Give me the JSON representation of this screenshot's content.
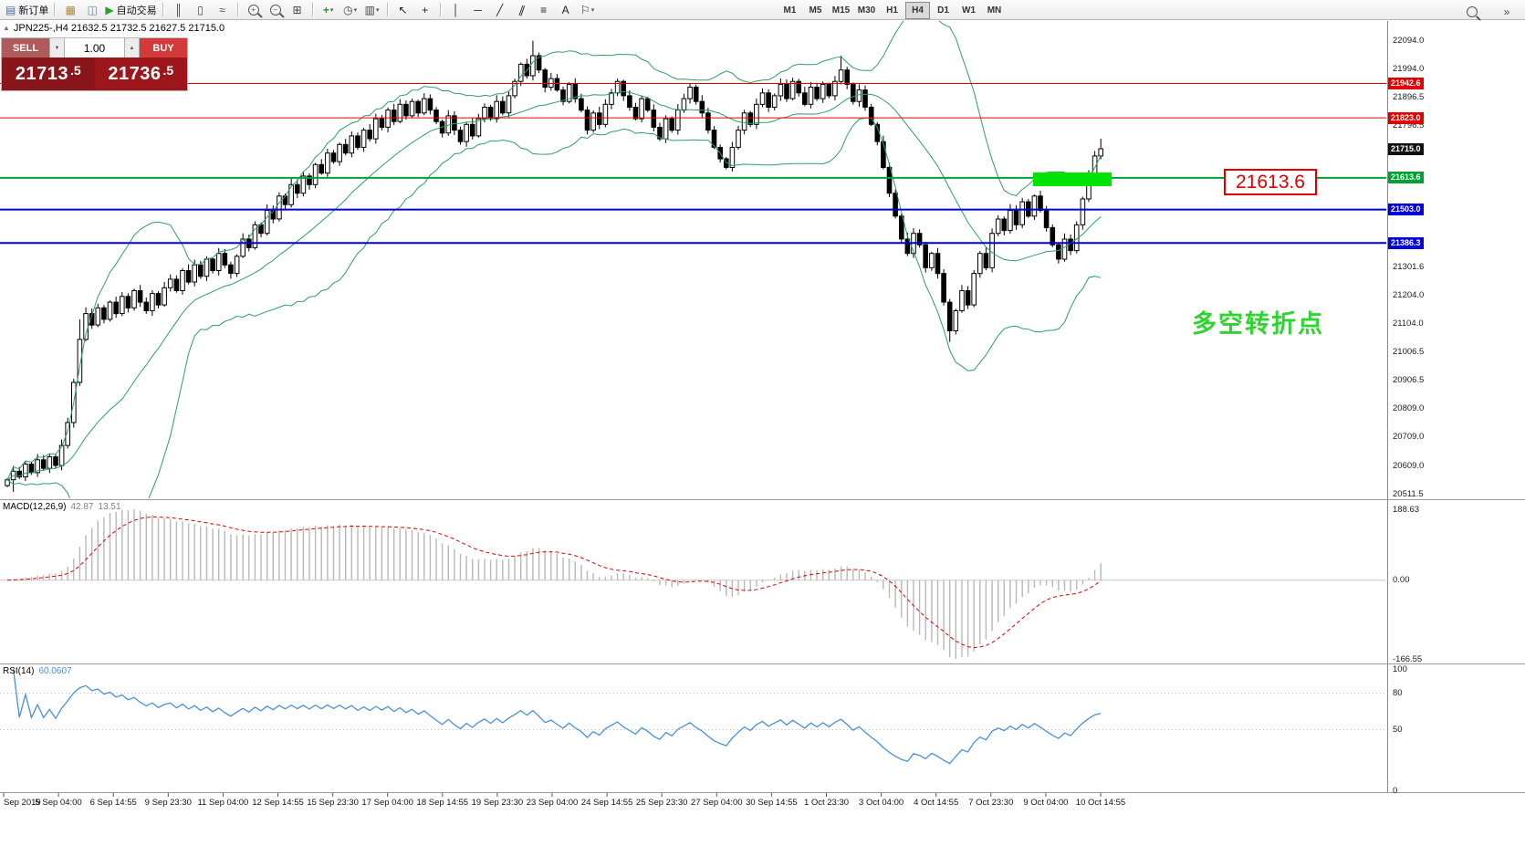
{
  "toolbar": {
    "items": [
      {
        "name": "new-order-button",
        "glyph": "▤",
        "color": "#3e6fb0",
        "label": "新订单"
      },
      {
        "sep": true
      },
      {
        "name": "charts-window-icon",
        "glyph": "▦",
        "color": "#b08a3e"
      },
      {
        "name": "profiles-icon",
        "glyph": "◫",
        "color": "#5e82b8"
      },
      {
        "name": "autotrading-button",
        "glyph": "▶",
        "color": "#28a428",
        "label": "自动交易"
      },
      {
        "sep": true
      },
      {
        "name": "bar-chart-icon",
        "glyph": "║",
        "color": "#444444"
      },
      {
        "name": "candlestick-chart-icon",
        "glyph": "▯",
        "color": "#444444"
      },
      {
        "name": "line-chart-icon",
        "glyph": "≈",
        "color": "#444444"
      },
      {
        "sep": true
      },
      {
        "name": "zoom-in-icon",
        "kind": "mag",
        "sub": "+"
      },
      {
        "name": "zoom-out-icon",
        "kind": "mag",
        "sub": "−"
      },
      {
        "name": "tile-windows-icon",
        "glyph": "⊞",
        "color": "#444444"
      },
      {
        "sep": true
      },
      {
        "name": "indicators-button",
        "glyph": "+",
        "color": "#1f9e1f",
        "bold": true,
        "dropdown": true
      },
      {
        "name": "periods-button",
        "glyph": "◷",
        "color": "#444444",
        "dropdown": true
      },
      {
        "name": "template-button",
        "glyph": "▥",
        "color": "#444444",
        "dropdown": true
      },
      {
        "sep": true
      },
      {
        "name": "cursor-icon",
        "glyph": "↖",
        "color": "#222222"
      },
      {
        "name": "crosshair-icon",
        "glyph": "+",
        "color": "#222222"
      },
      {
        "sep": true
      },
      {
        "name": "vertical-line-icon",
        "glyph": "│",
        "color": "#222222"
      },
      {
        "name": "horizontal-line-icon",
        "glyph": "─",
        "color": "#222222"
      },
      {
        "name": "trendline-icon",
        "glyph": "╱",
        "color": "#222222"
      },
      {
        "name": "channel-icon",
        "glyph": "∥",
        "color": "#222222",
        "tilt": true
      },
      {
        "name": "fibonacci-icon",
        "glyph": "≡",
        "color": "#222222"
      },
      {
        "name": "text-icon",
        "glyph": "A",
        "color": "#222222"
      },
      {
        "name": "arrows-icon",
        "glyph": "⚐",
        "color": "#222222",
        "dropdown": true
      }
    ],
    "dropdown_glyph": "▾",
    "timeframes": [
      "M1",
      "M5",
      "M15",
      "M30",
      "H1",
      "H4",
      "D1",
      "W1",
      "MN"
    ],
    "active_timeframe": "H4",
    "right_icons": [
      {
        "name": "search-icon",
        "kind": "mag",
        "sub": ""
      },
      {
        "name": "quick-jump-icon",
        "glyph": "»",
        "color": "#444444"
      }
    ]
  },
  "chart": {
    "collapse_glyph": "▲",
    "symbol_header": "JPN225-,H4  21632.5 21732.5 21627.5 21715.0"
  },
  "one_click": {
    "sell_label": "SELL",
    "buy_label": "BUY",
    "volume": "1.00",
    "spin_down_glyph": "▼",
    "spin_up_glyph": "▲",
    "sell_price": "21713.5",
    "buy_price": "21736.5",
    "colors": {
      "sell_button": "#b05b5b",
      "buy_button": "#d43a3a",
      "sell_panel": "#8a161b",
      "buy_panel": "#9c161b"
    }
  },
  "annotations": {
    "level_box": {
      "text": "21613.6",
      "color": "#e00000"
    },
    "turning_point": {
      "text": "多空转折点",
      "color": "#2fd42f"
    },
    "highlight": {
      "color": "#00e400"
    }
  },
  "chart_data": {
    "type": "candlestick",
    "symbol": "JPN225-",
    "timeframe": "H4",
    "ohlc_header": {
      "open": "21632.5",
      "high": "21732.5",
      "low": "21627.5",
      "close": "21715.0"
    },
    "first_open": 20540,
    "closes": [
      20560,
      20590,
      20570,
      20615,
      20585,
      20630,
      20600,
      20640,
      20610,
      20680,
      20760,
      20900,
      21050,
      21140,
      21100,
      21160,
      21120,
      21180,
      21140,
      21200,
      21160,
      21220,
      21180,
      21150,
      21210,
      21170,
      21230,
      21260,
      21220,
      21290,
      21250,
      21310,
      21270,
      21330,
      21290,
      21350,
      21310,
      21280,
      21340,
      21400,
      21370,
      21450,
      21420,
      21500,
      21470,
      21550,
      21520,
      21590,
      21560,
      21620,
      21590,
      21660,
      21630,
      21700,
      21670,
      21730,
      21700,
      21760,
      21720,
      21780,
      21750,
      21820,
      21790,
      21850,
      21810,
      21870,
      21830,
      21880,
      21840,
      21890,
      21850,
      21810,
      21770,
      21830,
      21780,
      21740,
      21800,
      21760,
      21820,
      21860,
      21820,
      21880,
      21840,
      21900,
      21950,
      22010,
      21970,
      22040,
      21990,
      21930,
      21960,
      21920,
      21880,
      21940,
      21890,
      21850,
      21780,
      21840,
      21800,
      21870,
      21910,
      21950,
      21900,
      21860,
      21820,
      21890,
      21850,
      21790,
      21750,
      21820,
      21780,
      21850,
      21890,
      21930,
      21880,
      21840,
      21780,
      21720,
      21680,
      21650,
      21720,
      21780,
      21840,
      21800,
      21870,
      21910,
      21860,
      21900,
      21940,
      21890,
      21950,
      21910,
      21870,
      21930,
      21890,
      21940,
      21900,
      21950,
      21990,
      21940,
      21880,
      21920,
      21860,
      21800,
      21740,
      21650,
      21560,
      21480,
      21400,
      21350,
      21420,
      21380,
      21300,
      21350,
      21280,
      21180,
      21080,
      21150,
      21220,
      21170,
      21280,
      21350,
      21300,
      21420,
      21470,
      21430,
      21500,
      21450,
      21530,
      21480,
      21550,
      21500,
      21440,
      21380,
      21330,
      21400,
      21360,
      21450,
      21540,
      21620,
      21690,
      21715
    ],
    "wick_overrides": {
      "1": {
        "low": 20518
      },
      "12": {
        "high": 21120
      },
      "87": {
        "high": 22092
      },
      "138": {
        "high": 22040
      },
      "156": {
        "low": 21041
      },
      "181": {
        "high": 21750
      }
    },
    "price_axis": {
      "top_price": 22094.0,
      "bottom_price": 20511.5,
      "labels": [
        "22094.0",
        "21994.0",
        "21896.5",
        "21796.5",
        "21301.6",
        "21204.0",
        "21104.0",
        "21006.5",
        "20906.5",
        "20809.0",
        "20709.0",
        "20609.0",
        "20511.5"
      ]
    },
    "bollinger": {
      "period": 20,
      "deviation": 2,
      "color": "#2f9e63"
    },
    "horizontal_lines": [
      {
        "price": 21942.6,
        "color": "#e00000",
        "width": 1
      },
      {
        "price": 21823.0,
        "color": "#e00000",
        "width": 1
      },
      {
        "price": 21613.6,
        "color": "#00a332",
        "width": 2
      },
      {
        "price": 21503.0,
        "color": "#0000dd",
        "width": 2
      },
      {
        "price": 21386.3,
        "color": "#0000dd",
        "width": 2
      }
    ],
    "price_tags": [
      {
        "text": "21942.6",
        "price": 21942.6,
        "bg": "#e00000"
      },
      {
        "text": "21823.0",
        "price": 21823.0,
        "bg": "#e00000"
      },
      {
        "text": "21715.0",
        "price": 21715.0,
        "bg": "#111111"
      },
      {
        "text": "21613.6",
        "price": 21613.6,
        "bg": "#00a332"
      },
      {
        "text": "21503.0",
        "price": 21503.0,
        "bg": "#0000dd"
      },
      {
        "text": "21386.3",
        "price": 21386.3,
        "bg": "#0000dd"
      }
    ],
    "time_labels": [
      "Sep 2019",
      "5 Sep 04:00",
      "6 Sep 14:55",
      "9 Sep 23:30",
      "11 Sep 04:00",
      "12 Sep 14:55",
      "15 Sep 23:30",
      "17 Sep 04:00",
      "18 Sep 14:55",
      "19 Sep 23:30",
      "23 Sep 04:00",
      "24 Sep 14:55",
      "25 Sep 23:30",
      "27 Sep 04:00",
      "30 Sep 14:55",
      "1 Oct 23:30",
      "3 Oct 04:00",
      "4 Oct 14:55",
      "7 Oct 23:30",
      "9 Oct 04:00",
      "10 Oct 14:55"
    ],
    "macd": {
      "title": "MACD(12,26,9)",
      "main_value": "42.87",
      "signal_value": "13.51",
      "axis_labels": [
        "188.63",
        "0.00",
        "-166.55"
      ],
      "histogram_color": "#b8b8b8",
      "signal_color": "#e00000"
    },
    "rsi": {
      "title": "RSI(14)",
      "value": "60.0607",
      "axis_labels": [
        "100",
        "80",
        "50",
        "0"
      ],
      "levels": [
        80,
        50
      ],
      "color": "#4a90d9"
    }
  }
}
